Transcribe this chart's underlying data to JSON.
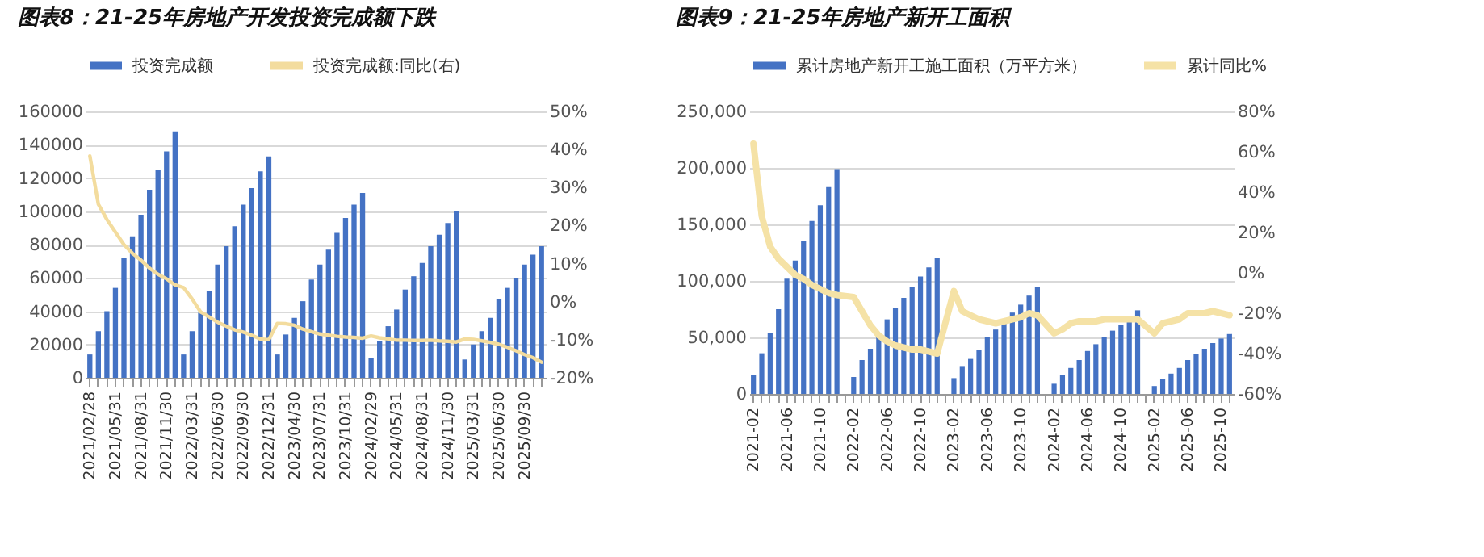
{
  "chart_data": [
    {
      "type": "bar",
      "title": "图表8：21-25年房地产开发投资完成额下跌",
      "grid": "y",
      "legend": "top",
      "categories": [
        "2021/02/28",
        null,
        null,
        "2021/05/31",
        null,
        null,
        "2021/08/31",
        null,
        null,
        "2021/11/30",
        null,
        null,
        "2022/03/31",
        null,
        null,
        "2022/06/30",
        null,
        null,
        "2022/09/30",
        null,
        null,
        "2022/12/31",
        null,
        null,
        "2023/04/30",
        null,
        null,
        "2023/07/31",
        null,
        null,
        "2023/10/31",
        null,
        null,
        "2024/02/29",
        null,
        null,
        "2024/05/31",
        null,
        null,
        "2024/08/31",
        null,
        null,
        "2024/11/30",
        null,
        null,
        "2025/03/31",
        null,
        null,
        "2025/06/30",
        null,
        null,
        "2025/09/30",
        null,
        null
      ],
      "series": [
        {
          "name": "投资完成额",
          "color": "#4472c4",
          "values": [
            14000,
            28000,
            40000,
            54000,
            72000,
            85000,
            98000,
            113000,
            125000,
            136000,
            148000,
            14000,
            28000,
            39000,
            52000,
            68000,
            79000,
            91000,
            104000,
            114000,
            124000,
            133000,
            14000,
            26000,
            36000,
            46000,
            59000,
            68000,
            77000,
            87000,
            96000,
            104000,
            111000,
            12000,
            22000,
            31000,
            41000,
            53000,
            61000,
            69000,
            79000,
            86000,
            93000,
            100000,
            11000,
            20000,
            28000,
            36000,
            47000,
            54000,
            60000,
            68000,
            74000,
            79000
          ]
        },
        {
          "name": "投资完成额:同比(右)",
          "type": "line",
          "axis": "y2",
          "color": "#f3dc9e",
          "values": [
            38.3,
            25.6,
            21.6,
            18.3,
            15.0,
            12.7,
            10.9,
            8.8,
            7.2,
            6.0,
            4.4,
            3.7,
            0.7,
            -2.7,
            -4.0,
            -5.4,
            -6.4,
            -7.4,
            -8.0,
            -8.8,
            -9.8,
            -10.0,
            -5.7,
            -5.8,
            -6.2,
            -7.2,
            -7.9,
            -8.5,
            -8.8,
            -9.1,
            -9.3,
            -9.4,
            -9.6,
            -9.0,
            -9.5,
            -9.8,
            -10.1,
            -10.1,
            -10.2,
            -10.2,
            -10.1,
            -10.3,
            -10.4,
            -10.6,
            -9.8,
            -9.9,
            -10.3,
            -10.7,
            -11.2,
            -12.0,
            -12.9,
            -13.9,
            -14.7,
            -15.9
          ]
        }
      ],
      "ylim": [
        0,
        160000
      ],
      "yticks": [
        0,
        20000,
        40000,
        60000,
        80000,
        100000,
        120000,
        140000,
        160000
      ],
      "y2lim": [
        -20,
        50
      ],
      "y2ticks": [
        {
          "value": -20,
          "label": "-20%"
        },
        {
          "value": -10,
          "label": "-10%"
        },
        {
          "value": 0,
          "label": "0%"
        },
        {
          "value": 10,
          "label": "10%"
        },
        {
          "value": 20,
          "label": "20%"
        },
        {
          "value": 30,
          "label": "30%"
        },
        {
          "value": 40,
          "label": "40%"
        },
        {
          "value": 50,
          "label": "50%"
        }
      ]
    },
    {
      "type": "bar",
      "title": "图表9：21-25年房地产新开工面积",
      "grid": "y",
      "legend": "top",
      "categories": [
        "2021-02",
        null,
        null,
        null,
        "2021-06",
        null,
        null,
        null,
        "2021-10",
        null,
        null,
        null,
        "2022-02",
        null,
        null,
        null,
        "2022-06",
        null,
        null,
        null,
        "2022-10",
        null,
        null,
        null,
        "2023-02",
        null,
        null,
        null,
        "2023-06",
        null,
        null,
        null,
        "2023-10",
        null,
        null,
        null,
        "2024-02",
        null,
        null,
        null,
        "2024-06",
        null,
        null,
        null,
        "2024-10",
        null,
        null,
        null,
        "2025-02",
        null,
        null,
        null,
        "2025-06",
        null,
        null,
        null,
        "2025-10",
        null
      ],
      "series": [
        {
          "name": "累计房地产新开工施工面积（万平方米）",
          "color": "#4472c4",
          "values": [
            17000,
            36000,
            54000,
            75000,
            102000,
            118000,
            135000,
            153000,
            167000,
            183000,
            199000,
            null,
            15000,
            30000,
            40000,
            52000,
            66000,
            76000,
            85000,
            95000,
            104000,
            112000,
            120000,
            null,
            14000,
            24000,
            31000,
            39000,
            50000,
            57000,
            63000,
            72000,
            79000,
            87000,
            95000,
            null,
            9000,
            17000,
            23000,
            30000,
            38000,
            44000,
            50000,
            56000,
            61000,
            67000,
            74000,
            null,
            7000,
            13000,
            18000,
            23000,
            30000,
            35000,
            40000,
            45000,
            49000,
            53000
          ]
        },
        {
          "name": "累计同比%",
          "type": "line",
          "axis": "y2",
          "color": "#f5e2a6",
          "values": [
            64,
            28,
            13,
            7,
            3,
            -1,
            -3,
            -6,
            -8,
            -10,
            -11,
            null,
            -12,
            -19,
            -26,
            -31,
            -34,
            -36,
            -37,
            -38,
            -38,
            -39,
            -40,
            null,
            -9,
            -19,
            -21,
            -23,
            -24,
            -25,
            -24,
            -23,
            -22,
            -20,
            -21,
            null,
            -30,
            -28,
            -25,
            -24,
            -24,
            -24,
            -23,
            -23,
            -23,
            -23,
            -23,
            null,
            -30,
            -25,
            -24,
            -23,
            -20,
            -20,
            -20,
            -19,
            -20,
            -21
          ]
        }
      ],
      "ylim": [
        0,
        250000
      ],
      "yticks": [
        {
          "value": 0,
          "label": "0"
        },
        {
          "value": 50000,
          "label": "50,000"
        },
        {
          "value": 100000,
          "label": "100,000"
        },
        {
          "value": 150000,
          "label": "150,000"
        },
        {
          "value": 200000,
          "label": "200,000"
        },
        {
          "value": 250000,
          "label": "250,000"
        }
      ],
      "y2lim": [
        -60,
        80
      ],
      "y2ticks": [
        {
          "value": -60,
          "label": "-60%"
        },
        {
          "value": -40,
          "label": "-40%"
        },
        {
          "value": -20,
          "label": "-20%"
        },
        {
          "value": 0,
          "label": "0%"
        },
        {
          "value": 20,
          "label": "20%"
        },
        {
          "value": 40,
          "label": "40%"
        },
        {
          "value": 60,
          "label": "60%"
        },
        {
          "value": 80,
          "label": "80%"
        }
      ]
    }
  ]
}
